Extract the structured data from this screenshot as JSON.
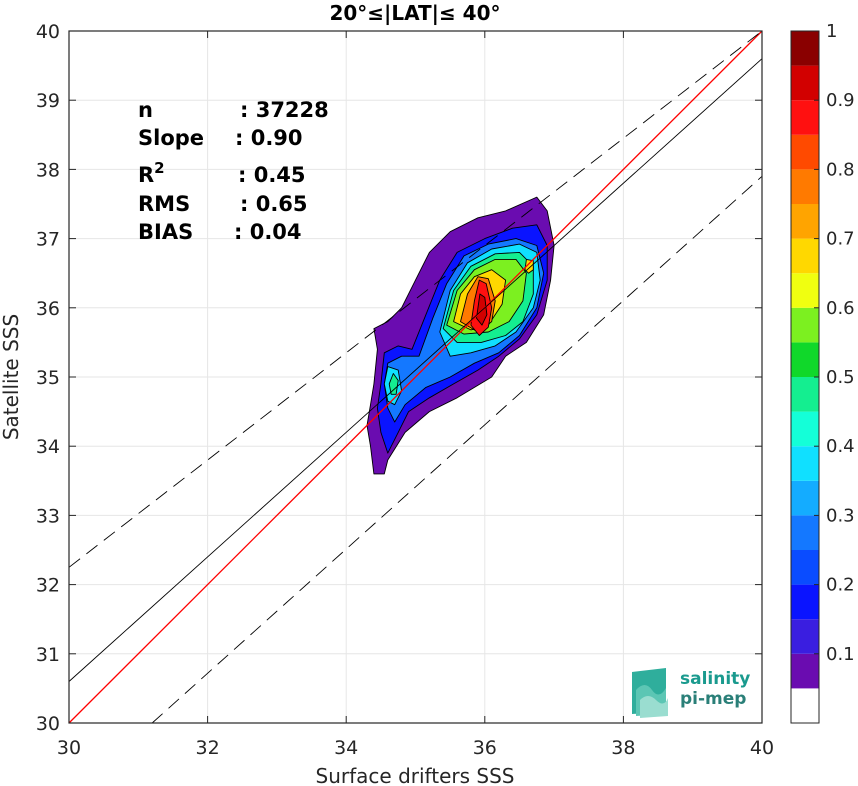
{
  "chart_data": {
    "type": "heatmap",
    "title": "20°≤|LAT|≤ 40°",
    "xlabel": "Surface drifters SSS",
    "ylabel": "Satellite SSS",
    "xlim": [
      30,
      40
    ],
    "ylim": [
      30,
      40
    ],
    "xticks": [
      "30",
      "32",
      "34",
      "36",
      "38",
      "40"
    ],
    "yticks": [
      "30",
      "31",
      "32",
      "33",
      "34",
      "35",
      "36",
      "37",
      "38",
      "39",
      "40"
    ],
    "grid": true,
    "stats": [
      {
        "label": "n",
        "value": ": 37228"
      },
      {
        "label": "Slope",
        "value": ": 0.90"
      },
      {
        "label": "R",
        "sup": "2",
        "value": ": 0.45"
      },
      {
        "label": "RMS",
        "value": ": 0.65"
      },
      {
        "label": "BIAS",
        "value": ": 0.04"
      }
    ],
    "lines": [
      {
        "name": "1:1 line",
        "color": "#ff0000",
        "style": "solid",
        "points": [
          [
            30,
            30
          ],
          [
            40,
            40
          ]
        ]
      },
      {
        "name": "regression fit",
        "color": "#000000",
        "style": "solid",
        "points": [
          [
            30,
            30.6
          ],
          [
            40,
            39.6
          ]
        ]
      },
      {
        "name": "upper bound",
        "color": "#000000",
        "style": "dashed",
        "points": [
          [
            30,
            32.25
          ],
          [
            40,
            40.0
          ]
        ]
      },
      {
        "name": "lower bound",
        "color": "#000000",
        "style": "dashed",
        "points": [
          [
            31.2,
            30
          ],
          [
            40,
            37.9
          ]
        ]
      }
    ],
    "contours": [
      {
        "level": 0.05,
        "points": [
          [
            34.4,
            34.9
          ],
          [
            34.45,
            35.4
          ],
          [
            34.4,
            35.7
          ],
          [
            34.6,
            35.8
          ],
          [
            34.8,
            36.0
          ],
          [
            35.0,
            36.4
          ],
          [
            35.2,
            36.8
          ],
          [
            35.5,
            37.1
          ],
          [
            35.9,
            37.3
          ],
          [
            36.3,
            37.4
          ],
          [
            36.75,
            37.6
          ],
          [
            36.9,
            37.4
          ],
          [
            37.0,
            36.9
          ],
          [
            36.95,
            36.4
          ],
          [
            36.85,
            35.9
          ],
          [
            36.6,
            35.5
          ],
          [
            36.3,
            35.3
          ],
          [
            36.1,
            35.0
          ],
          [
            35.6,
            34.7
          ],
          [
            35.2,
            34.5
          ],
          [
            34.85,
            34.2
          ],
          [
            34.6,
            33.8
          ],
          [
            34.55,
            33.6
          ],
          [
            34.4,
            33.6
          ],
          [
            34.35,
            34.0
          ],
          [
            34.3,
            34.3
          ],
          [
            34.35,
            34.6
          ]
        ]
      },
      {
        "level": 0.15,
        "points": [
          [
            34.5,
            34.9
          ],
          [
            34.55,
            35.35
          ],
          [
            34.75,
            35.45
          ],
          [
            34.95,
            35.4
          ],
          [
            35.15,
            35.9
          ],
          [
            35.35,
            36.4
          ],
          [
            35.6,
            36.8
          ],
          [
            36.0,
            37.0
          ],
          [
            36.4,
            37.15
          ],
          [
            36.75,
            37.2
          ],
          [
            36.9,
            36.9
          ],
          [
            36.9,
            36.4
          ],
          [
            36.75,
            35.9
          ],
          [
            36.5,
            35.55
          ],
          [
            36.2,
            35.3
          ],
          [
            35.9,
            35.1
          ],
          [
            35.55,
            34.9
          ],
          [
            35.2,
            34.7
          ],
          [
            34.9,
            34.5
          ],
          [
            34.75,
            34.2
          ],
          [
            34.6,
            33.9
          ],
          [
            34.5,
            34.2
          ],
          [
            34.45,
            34.55
          ]
        ]
      },
      {
        "level": 0.25,
        "points": [
          [
            34.55,
            34.9
          ],
          [
            34.6,
            35.2
          ],
          [
            34.8,
            35.3
          ],
          [
            35.05,
            35.3
          ],
          [
            35.25,
            35.85
          ],
          [
            35.45,
            36.35
          ],
          [
            35.7,
            36.75
          ],
          [
            36.05,
            36.92
          ],
          [
            36.45,
            37.0
          ],
          [
            36.75,
            36.9
          ],
          [
            36.85,
            36.5
          ],
          [
            36.75,
            36.0
          ],
          [
            36.5,
            35.6
          ],
          [
            36.2,
            35.35
          ],
          [
            35.85,
            35.2
          ],
          [
            35.5,
            35.0
          ],
          [
            35.15,
            34.85
          ],
          [
            34.85,
            34.6
          ],
          [
            34.7,
            34.35
          ],
          [
            34.6,
            34.55
          ]
        ]
      },
      {
        "level": 0.35,
        "points": [
          [
            35.35,
            35.65
          ],
          [
            35.5,
            36.25
          ],
          [
            35.75,
            36.65
          ],
          [
            36.1,
            36.85
          ],
          [
            36.5,
            36.92
          ],
          [
            36.75,
            36.8
          ],
          [
            36.8,
            36.4
          ],
          [
            36.7,
            36.0
          ],
          [
            36.45,
            35.65
          ],
          [
            36.15,
            35.45
          ],
          [
            35.8,
            35.35
          ],
          [
            35.5,
            35.3
          ]
        ]
      },
      {
        "level": 0.45,
        "points": [
          [
            35.4,
            35.7
          ],
          [
            35.55,
            36.25
          ],
          [
            35.8,
            36.6
          ],
          [
            36.15,
            36.78
          ],
          [
            36.5,
            36.8
          ],
          [
            36.7,
            36.6
          ],
          [
            36.7,
            36.2
          ],
          [
            36.55,
            35.8
          ],
          [
            36.3,
            35.6
          ],
          [
            35.95,
            35.5
          ],
          [
            35.6,
            35.5
          ]
        ]
      },
      {
        "level": 0.55,
        "points": [
          [
            35.45,
            35.75
          ],
          [
            35.6,
            36.25
          ],
          [
            35.85,
            36.55
          ],
          [
            36.15,
            36.7
          ],
          [
            36.45,
            36.7
          ],
          [
            36.6,
            36.5
          ],
          [
            36.55,
            36.1
          ],
          [
            36.35,
            35.8
          ],
          [
            36.05,
            35.65
          ],
          [
            35.7,
            35.62
          ]
        ]
      },
      {
        "level": 0.65,
        "points": [
          [
            35.55,
            35.8
          ],
          [
            35.65,
            36.2
          ],
          [
            35.85,
            36.45
          ],
          [
            36.1,
            36.55
          ],
          [
            36.3,
            36.4
          ],
          [
            36.25,
            36.05
          ],
          [
            36.05,
            35.75
          ],
          [
            35.8,
            35.68
          ]
        ]
      },
      {
        "level": 0.75,
        "points": [
          [
            35.65,
            35.8
          ],
          [
            35.75,
            36.2
          ],
          [
            35.9,
            36.45
          ],
          [
            36.05,
            36.42
          ],
          [
            36.15,
            36.1
          ],
          [
            36.1,
            35.8
          ],
          [
            35.9,
            35.65
          ]
        ]
      },
      {
        "level": 0.85,
        "points": [
          [
            35.8,
            35.75
          ],
          [
            35.85,
            36.1
          ],
          [
            35.92,
            36.4
          ],
          [
            36.02,
            36.35
          ],
          [
            36.1,
            36.0
          ],
          [
            36.05,
            35.72
          ],
          [
            35.92,
            35.6
          ]
        ]
      },
      {
        "level": 0.92,
        "points": [
          [
            35.88,
            35.85
          ],
          [
            35.93,
            36.2
          ],
          [
            36.0,
            36.15
          ],
          [
            36.03,
            35.9
          ],
          [
            35.96,
            35.75
          ]
        ]
      }
    ],
    "secondary_blobs": [
      {
        "level": 0.35,
        "points": [
          [
            34.55,
            34.9
          ],
          [
            34.6,
            35.15
          ],
          [
            34.75,
            35.1
          ],
          [
            34.8,
            34.8
          ],
          [
            34.7,
            34.6
          ],
          [
            34.6,
            34.65
          ]
        ]
      },
      {
        "level": 0.45,
        "points": [
          [
            34.62,
            34.9
          ],
          [
            34.68,
            35.05
          ],
          [
            34.75,
            34.95
          ],
          [
            34.72,
            34.75
          ],
          [
            34.65,
            34.75
          ]
        ]
      },
      {
        "level": 0.65,
        "points": [
          [
            36.58,
            36.55
          ],
          [
            36.6,
            36.7
          ],
          [
            36.7,
            36.68
          ],
          [
            36.7,
            36.55
          ],
          [
            36.63,
            36.5
          ]
        ]
      }
    ],
    "colorbar": {
      "ticks": [
        "0.1",
        "0.2",
        "0.3",
        "0.4",
        "0.5",
        "0.6",
        "0.7",
        "0.8",
        "0.9",
        "1"
      ],
      "range": [
        0,
        1
      ],
      "bands": [
        {
          "from": 0.0,
          "to": 0.05,
          "color": "#ffffff"
        },
        {
          "from": 0.05,
          "to": 0.1,
          "color": "#6a0cb0"
        },
        {
          "from": 0.1,
          "to": 0.15,
          "color": "#3a1ee0"
        },
        {
          "from": 0.15,
          "to": 0.2,
          "color": "#0a14ff"
        },
        {
          "from": 0.2,
          "to": 0.25,
          "color": "#0a4cff"
        },
        {
          "from": 0.25,
          "to": 0.3,
          "color": "#1478ff"
        },
        {
          "from": 0.3,
          "to": 0.35,
          "color": "#14acff"
        },
        {
          "from": 0.35,
          "to": 0.4,
          "color": "#10e0ff"
        },
        {
          "from": 0.4,
          "to": 0.45,
          "color": "#14ffd8"
        },
        {
          "from": 0.45,
          "to": 0.5,
          "color": "#14ee90"
        },
        {
          "from": 0.5,
          "to": 0.55,
          "color": "#10d82a"
        },
        {
          "from": 0.55,
          "to": 0.6,
          "color": "#7cf020"
        },
        {
          "from": 0.6,
          "to": 0.65,
          "color": "#f0ff10"
        },
        {
          "from": 0.65,
          "to": 0.7,
          "color": "#ffd800"
        },
        {
          "from": 0.7,
          "to": 0.75,
          "color": "#ffa400"
        },
        {
          "from": 0.75,
          "to": 0.8,
          "color": "#ff7a00"
        },
        {
          "from": 0.8,
          "to": 0.85,
          "color": "#ff4a00"
        },
        {
          "from": 0.85,
          "to": 0.9,
          "color": "#ff1010"
        },
        {
          "from": 0.9,
          "to": 0.95,
          "color": "#d20000"
        },
        {
          "from": 0.95,
          "to": 1.0,
          "color": "#8a0000"
        }
      ]
    }
  },
  "logo": {
    "line1": "salinity",
    "line2": "pi-mep"
  }
}
